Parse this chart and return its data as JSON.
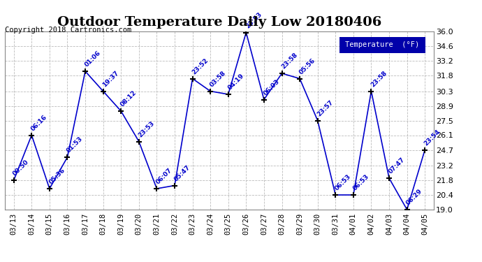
{
  "title": "Outdoor Temperature Daily Low 20180406",
  "copyright": "Copyright 2018 Cartronics.com",
  "legend_label": "Temperature  (°F)",
  "x_labels": [
    "03/13",
    "03/14",
    "03/15",
    "03/16",
    "03/17",
    "03/18",
    "03/19",
    "03/20",
    "03/21",
    "03/22",
    "03/23",
    "03/24",
    "03/25",
    "03/26",
    "03/27",
    "03/28",
    "03/29",
    "03/30",
    "03/31",
    "04/01",
    "04/02",
    "04/03",
    "04/04",
    "04/05"
  ],
  "time_labels": [
    "00:50",
    "06:16",
    "05:36",
    "01:53",
    "01:06",
    "19:37",
    "08:12",
    "23:53",
    "06:07",
    "05:47",
    "23:52",
    "03:58",
    "04:19",
    "23:53",
    "06:03",
    "23:58",
    "05:56",
    "23:57",
    "06:53",
    "06:53",
    "23:58",
    "07:47",
    "06:29",
    "23:54"
  ],
  "values": [
    21.8,
    26.1,
    21.0,
    24.0,
    32.2,
    30.3,
    28.4,
    25.5,
    21.0,
    21.3,
    31.5,
    30.3,
    30.0,
    35.9,
    29.5,
    32.0,
    31.5,
    27.5,
    20.4,
    20.4,
    30.3,
    22.0,
    19.0,
    24.7
  ],
  "ylim": [
    19.0,
    36.0
  ],
  "yticks": [
    19.0,
    20.4,
    21.8,
    23.2,
    24.7,
    26.1,
    27.5,
    28.9,
    30.3,
    31.8,
    33.2,
    34.6,
    36.0
  ],
  "line_color": "#0000CC",
  "marker_color": "#000000",
  "bg_color": "#ffffff",
  "grid_color": "#aaaaaa",
  "title_fontsize": 14,
  "label_color": "#0000CC",
  "legend_bg": "#0000AA",
  "legend_fg": "#ffffff"
}
